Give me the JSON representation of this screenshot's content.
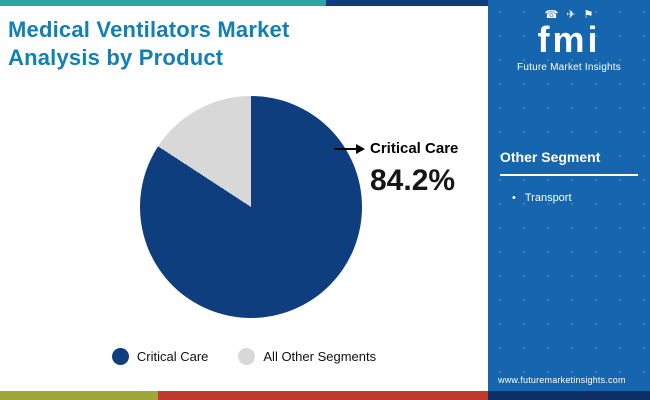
{
  "header": {
    "title_line1": "Medical Ventilators Market",
    "title_line2": "Analysis by Product"
  },
  "chart_data": {
    "type": "pie",
    "title": "Medical Ventilators Market Analysis by Product",
    "slices": [
      {
        "label": "Critical Care",
        "value": 84.2,
        "color": "#0e3e7d"
      },
      {
        "label": "All Other Segments",
        "value": 15.8,
        "color": "#d8d8d8"
      }
    ],
    "annotation": {
      "label": "Critical Care",
      "value_text": "84.2%"
    },
    "start_angle": "top",
    "direction": "clockwise",
    "legend_position": "bottom"
  },
  "legend": {
    "items": [
      {
        "label": "Critical Care",
        "color": "#0e3e7d"
      },
      {
        "label": "All Other Segments",
        "color": "#d8d8d8"
      }
    ]
  },
  "sidebar": {
    "logo_icons": [
      {
        "name": "phone-icon",
        "glyph": "☎"
      },
      {
        "name": "plane-icon",
        "glyph": "✈"
      },
      {
        "name": "flag-icon",
        "glyph": "⚑"
      }
    ],
    "logo_text": "fmi",
    "brand_name": "Future Market Insights",
    "section_title": "Other Segment",
    "bullet_char": "•",
    "items": [
      {
        "label": "Transport"
      }
    ],
    "website": "www.futuremarketinsights.com"
  },
  "colors": {
    "title": "#1180b3",
    "panel_bg": "#1566ae",
    "stripe_teal": "#2ba6a1",
    "stripe_navy": "#0e3c7c",
    "stripe_green": "#a0a739",
    "stripe_red": "#c23a2d",
    "stripe_bottom_navy": "#0d2f66"
  }
}
